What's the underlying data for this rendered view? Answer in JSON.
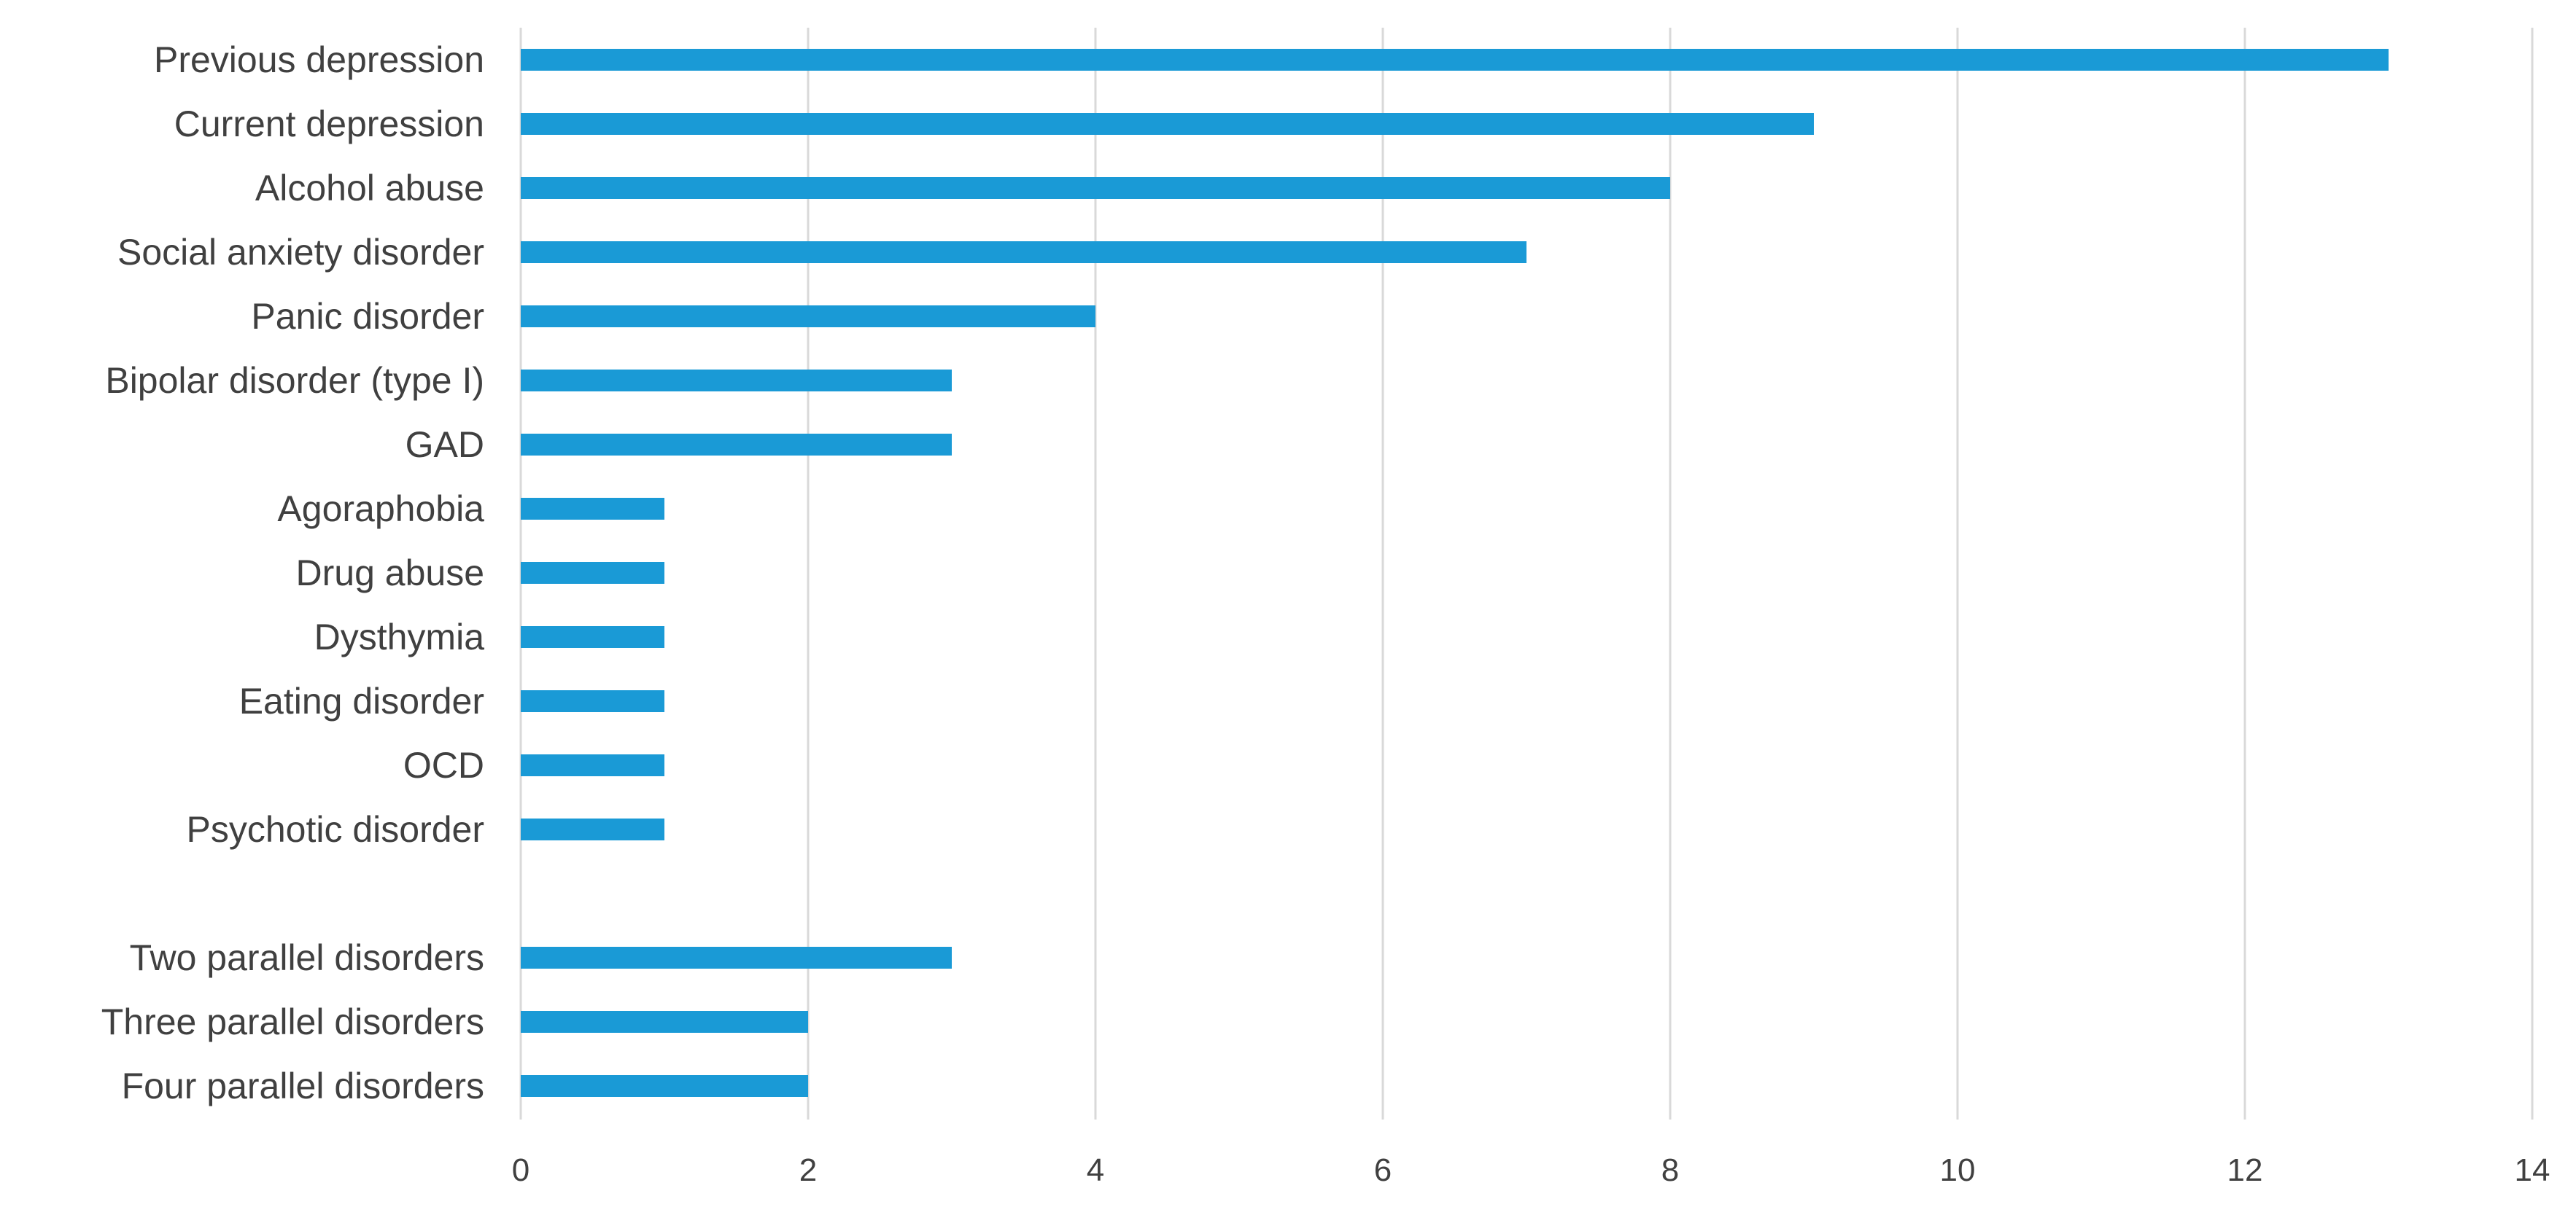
{
  "chart_data": {
    "type": "bar",
    "orientation": "horizontal",
    "title": "",
    "xlabel": "",
    "ylabel": "",
    "xlim": [
      0,
      14
    ],
    "x_ticks": [
      0,
      2,
      4,
      6,
      8,
      10,
      12,
      14
    ],
    "grid": "vertical",
    "legend": "none",
    "bar_color": "#1a9ad6",
    "grid_color": "#d9d9d9",
    "text_color": "#404040",
    "categories": [
      "Previous depression",
      "Current depression",
      "Alcohol abuse",
      "Social anxiety disorder",
      "Panic disorder",
      "Bipolar disorder (type I)",
      "GAD",
      "Agoraphobia",
      "Drug abuse",
      "Dysthymia",
      "Eating disorder",
      "OCD",
      "Psychotic disorder",
      "",
      "Two parallel disorders",
      "Three parallel disorders",
      "Four parallel disorders"
    ],
    "values": [
      13,
      9,
      8,
      7,
      4,
      3,
      3,
      1,
      1,
      1,
      1,
      1,
      1,
      null,
      3,
      2,
      2
    ]
  }
}
